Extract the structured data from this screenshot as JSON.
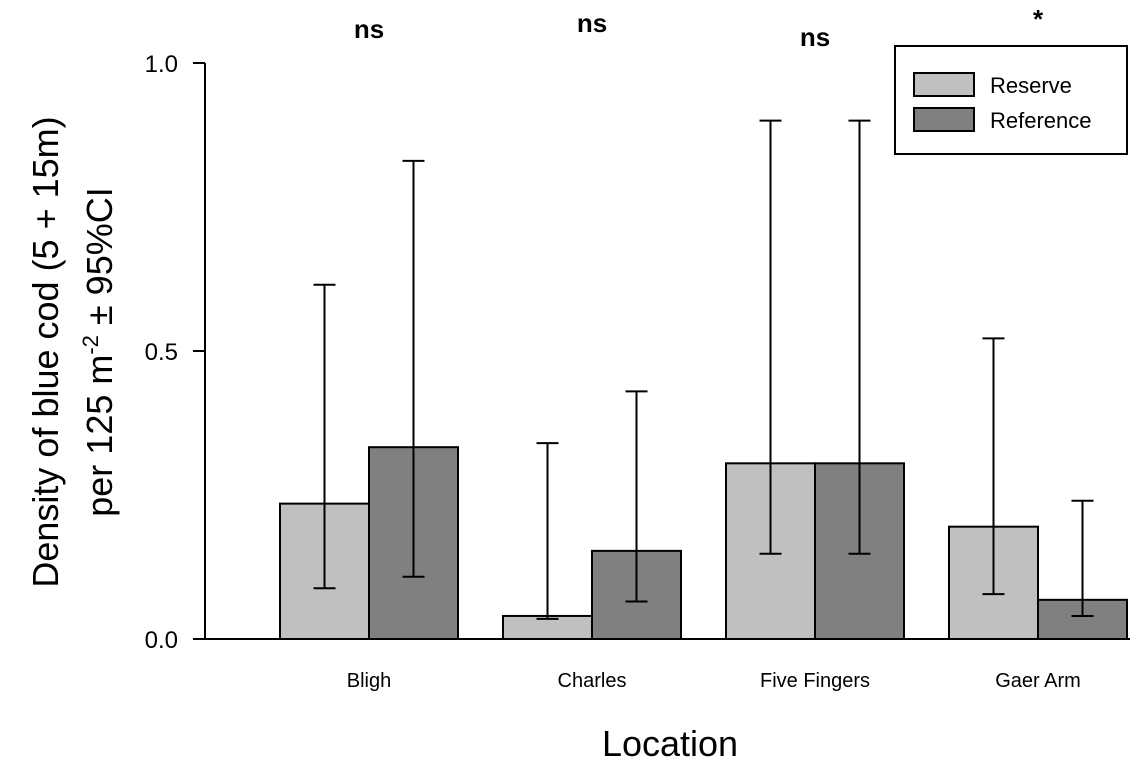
{
  "chart_data": {
    "type": "bar",
    "categories": [
      "Bligh",
      "Charles",
      "Five Fingers",
      "Gaer Arm"
    ],
    "series": [
      {
        "name": "Reserve",
        "color": "#c0c0c0",
        "values": [
          0.235,
          0.04,
          0.305,
          0.195
        ],
        "ci_low": [
          0.088,
          0.035,
          0.148,
          0.078
        ],
        "ci_high": [
          0.615,
          0.34,
          0.9,
          0.522
        ]
      },
      {
        "name": "Reference",
        "color": "#808080",
        "values": [
          0.333,
          0.153,
          0.305,
          0.068
        ],
        "ci_low": [
          0.108,
          0.065,
          0.148,
          0.04
        ],
        "ci_high": [
          0.83,
          0.43,
          0.9,
          0.24
        ]
      }
    ],
    "significance": [
      "ns",
      "ns",
      "ns",
      "*"
    ],
    "xlabel": "Location",
    "ylabel_line1": "Density of blue cod (5 + 15m)",
    "ylabel_line2_main": "per 125 m",
    "ylabel_line2_sup": "-2",
    "ylabel_line2_tail": " ± 95%CI",
    "yticks": [
      "0.0",
      "0.5",
      "1.0"
    ],
    "ylim": [
      0,
      1.0
    ],
    "legend_position": "top-right"
  }
}
